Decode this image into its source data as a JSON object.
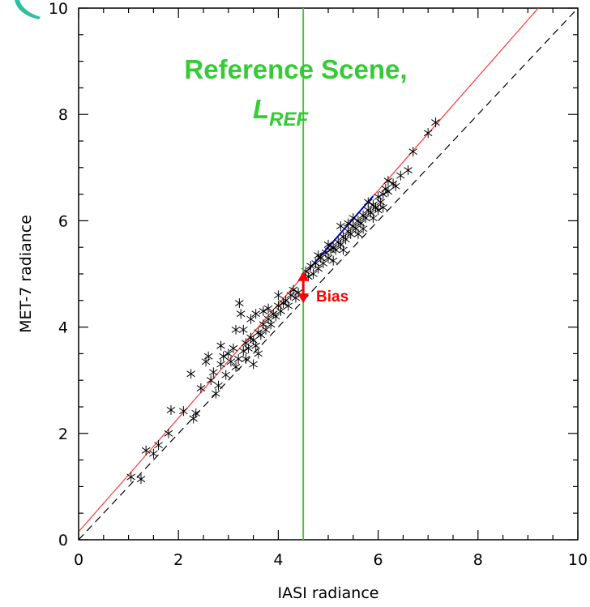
{
  "chart_data": {
    "type": "scatter",
    "xlabel": "IASI radiance",
    "ylabel": "MET-7 radiance",
    "xlim": [
      0,
      10
    ],
    "ylim": [
      0,
      10
    ],
    "x_ticks": [
      "0",
      "2",
      "4",
      "6",
      "8",
      "10"
    ],
    "y_ticks": [
      "0",
      "2",
      "4",
      "6",
      "8",
      "10"
    ],
    "grid": false,
    "reference_x": 4.5,
    "annotations": {
      "reference_scene": "Reference Scene,",
      "l_ref_main": "L",
      "l_ref_sub": "REF",
      "bias": "Bias"
    },
    "bias_arrow": {
      "x": 4.5,
      "y_from": 4.45,
      "y_to": 5.05
    },
    "lines": [
      {
        "kind": "fit",
        "color": "#ff3333",
        "slope": 1.07,
        "intercept": 0.15
      },
      {
        "kind": "one-to-one",
        "color": "#000000",
        "dashed": true,
        "slope": 1.0,
        "intercept": 0
      }
    ],
    "colors": {
      "points": "#000000",
      "reference": "#33cc33",
      "bias": "#ff0000",
      "fit": "#ff3333",
      "diagonal": "#000000",
      "cluster_line": "#0000cc"
    },
    "points": [
      [
        1.05,
        1.18
      ],
      [
        1.25,
        1.14
      ],
      [
        1.35,
        1.68
      ],
      [
        1.5,
        1.62
      ],
      [
        1.6,
        1.78
      ],
      [
        1.8,
        2.0
      ],
      [
        1.85,
        2.44
      ],
      [
        2.1,
        2.42
      ],
      [
        2.25,
        3.12
      ],
      [
        2.3,
        2.28
      ],
      [
        2.35,
        2.38
      ],
      [
        2.45,
        2.85
      ],
      [
        2.55,
        3.35
      ],
      [
        2.6,
        3.45
      ],
      [
        2.65,
        3.0
      ],
      [
        2.7,
        3.15
      ],
      [
        2.75,
        2.75
      ],
      [
        2.8,
        2.9
      ],
      [
        2.85,
        3.3
      ],
      [
        2.9,
        3.45
      ],
      [
        2.95,
        3.1
      ],
      [
        3.0,
        3.5
      ],
      [
        3.05,
        3.35
      ],
      [
        3.1,
        3.6
      ],
      [
        3.15,
        3.25
      ],
      [
        3.2,
        3.4
      ],
      [
        3.22,
        4.45
      ],
      [
        3.25,
        4.25
      ],
      [
        3.3,
        3.55
      ],
      [
        3.35,
        3.7
      ],
      [
        3.4,
        3.6
      ],
      [
        3.45,
        3.8
      ],
      [
        3.5,
        3.75
      ],
      [
        3.55,
        3.65
      ],
      [
        3.6,
        3.9
      ],
      [
        3.65,
        3.85
      ],
      [
        3.7,
        4.05
      ],
      [
        3.75,
        3.95
      ],
      [
        3.8,
        4.15
      ],
      [
        3.85,
        4.05
      ],
      [
        3.9,
        4.25
      ],
      [
        3.95,
        4.2
      ],
      [
        4.0,
        4.4
      ],
      [
        4.05,
        4.3
      ],
      [
        4.1,
        4.45
      ],
      [
        4.15,
        4.5
      ],
      [
        4.2,
        4.4
      ],
      [
        4.25,
        4.6
      ],
      [
        4.3,
        4.7
      ],
      [
        4.35,
        4.55
      ],
      [
        4.4,
        4.65
      ],
      [
        3.35,
        3.4
      ],
      [
        3.5,
        3.3
      ],
      [
        3.6,
        3.5
      ],
      [
        3.3,
        3.95
      ],
      [
        3.45,
        4.15
      ],
      [
        2.85,
        3.65
      ],
      [
        3.15,
        3.95
      ],
      [
        3.55,
        4.25
      ],
      [
        3.7,
        4.3
      ],
      [
        4.0,
        4.6
      ],
      [
        3.8,
        4.35
      ],
      [
        4.55,
        5.05
      ],
      [
        4.6,
        4.95
      ],
      [
        4.65,
        5.15
      ],
      [
        4.7,
        5.0
      ],
      [
        4.75,
        5.2
      ],
      [
        4.8,
        5.1
      ],
      [
        4.85,
        5.3
      ],
      [
        4.9,
        5.2
      ],
      [
        4.95,
        5.4
      ],
      [
        5.0,
        5.3
      ],
      [
        5.05,
        5.45
      ],
      [
        5.1,
        5.5
      ],
      [
        5.15,
        5.45
      ],
      [
        5.2,
        5.6
      ],
      [
        5.25,
        5.55
      ],
      [
        5.3,
        5.7
      ],
      [
        5.35,
        5.65
      ],
      [
        5.4,
        5.8
      ],
      [
        5.45,
        5.75
      ],
      [
        5.5,
        5.9
      ],
      [
        5.55,
        5.85
      ],
      [
        5.6,
        6.0
      ],
      [
        5.65,
        5.95
      ],
      [
        5.7,
        6.1
      ],
      [
        5.75,
        6.05
      ],
      [
        5.8,
        6.2
      ],
      [
        5.85,
        6.15
      ],
      [
        5.9,
        6.3
      ],
      [
        5.95,
        6.25
      ],
      [
        6.0,
        6.45
      ],
      [
        6.05,
        6.35
      ],
      [
        6.1,
        6.5
      ],
      [
        6.15,
        6.6
      ],
      [
        6.2,
        6.55
      ],
      [
        6.3,
        6.7
      ],
      [
        6.35,
        6.65
      ],
      [
        6.45,
        6.85
      ],
      [
        6.6,
        6.95
      ],
      [
        6.7,
        7.3
      ],
      [
        7.0,
        7.65
      ],
      [
        7.15,
        7.85
      ],
      [
        5.0,
        5.55
      ],
      [
        5.3,
        5.45
      ],
      [
        5.6,
        5.75
      ],
      [
        5.9,
        6.05
      ],
      [
        5.5,
        6.05
      ],
      [
        5.8,
        6.35
      ],
      [
        6.0,
        6.2
      ],
      [
        5.25,
        5.9
      ],
      [
        4.8,
        5.35
      ],
      [
        5.1,
        5.25
      ],
      [
        5.7,
        5.85
      ],
      [
        6.1,
        6.25
      ],
      [
        5.4,
        5.95
      ],
      [
        6.2,
        6.75
      ]
    ]
  }
}
